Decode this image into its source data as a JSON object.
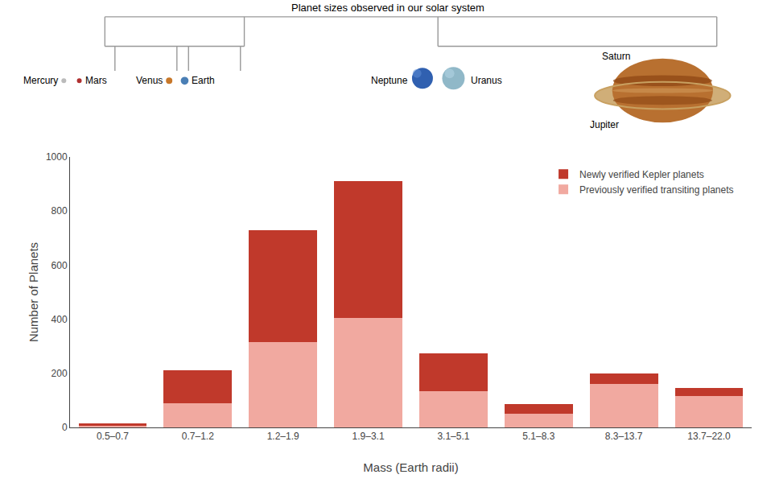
{
  "chart_data": {
    "type": "bar",
    "stacked": true,
    "categories": [
      "0.5–0.7",
      "0.7–1.2",
      "1.2–1.9",
      "1.9–3.1",
      "3.1–5.1",
      "5.1–8.3",
      "8.3–13.7",
      "13.7–22.0"
    ],
    "series": [
      {
        "name": "Previously verified transiting planets",
        "color": "#f1a9a0",
        "values": [
          5,
          90,
          315,
          405,
          135,
          50,
          160,
          115
        ]
      },
      {
        "name": "Newly verified Kepler planets",
        "color": "#c0392b",
        "values": [
          10,
          120,
          415,
          505,
          140,
          35,
          40,
          30
        ]
      }
    ],
    "xlabel": "Mass (Earth radii)",
    "ylabel": "Number of Planets",
    "ylim": [
      0,
      1000
    ],
    "yticks": [
      0,
      200,
      400,
      600,
      800,
      1000
    ],
    "legend": "upper right",
    "grid": false,
    "annotations": [
      "Planet sizes observed in our solar system",
      "Mercury",
      "Mars",
      "Venus",
      "Earth",
      "Neptune",
      "Uranus",
      "Saturn",
      "Jupiter"
    ]
  }
}
